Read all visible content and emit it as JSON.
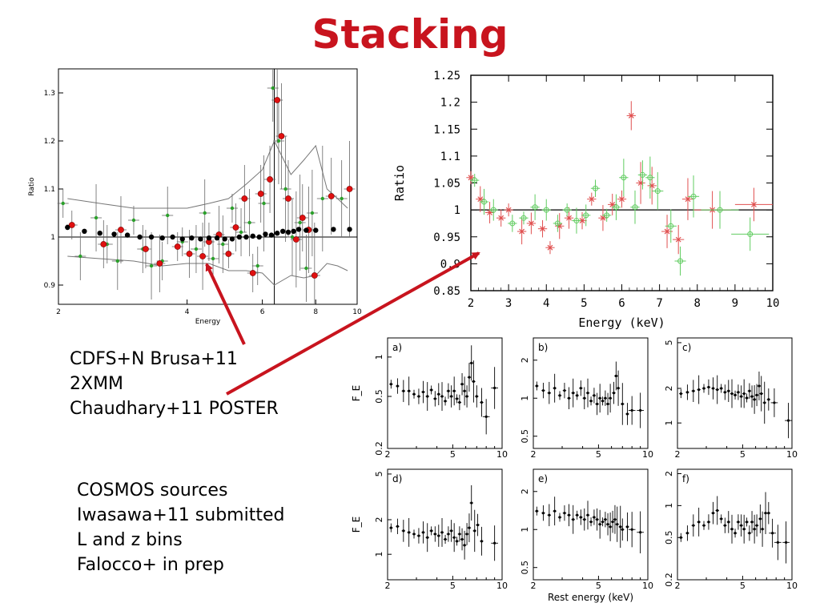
{
  "slide": {
    "title": "Stacking",
    "title_color": "#c8141e",
    "arrow_color": "#c8141e",
    "notes_top": [
      "CDFS+N Brusa+11",
      "2XMM",
      "Chaudhary+11 POSTER"
    ],
    "notes_bottom": [
      "COSMOS sources",
      "Iwasawa+11 submitted",
      "L and z bins",
      "Falocco+ in prep"
    ]
  },
  "chart_data": [
    {
      "id": "left",
      "type": "scatter",
      "title": "",
      "xlabel": "Energy",
      "ylabel": "Ratio",
      "xscale": "log",
      "xlim": [
        2,
        10
      ],
      "ylim": [
        0.86,
        1.35
      ],
      "xticks": [
        2,
        4,
        6,
        8,
        10
      ],
      "yticks": [
        0.9,
        1,
        1.1,
        1.2,
        1.3
      ],
      "ytick_labels": [
        "0.9",
        "1",
        "1.1",
        "1.2",
        "1.3"
      ],
      "hlines": [
        1.0
      ],
      "vlines": [
        6.4
      ],
      "series": [
        {
          "marker": "circle",
          "color": "#000000",
          "x": [
            2.1,
            2.3,
            2.5,
            2.7,
            2.9,
            3.1,
            3.3,
            3.5,
            3.7,
            3.9,
            4.1,
            4.3,
            4.5,
            4.7,
            4.9,
            5.1,
            5.3,
            5.5,
            5.7,
            5.9,
            6.1,
            6.3,
            6.5,
            6.7,
            6.9,
            7.1,
            7.3,
            7.6,
            8.0,
            8.8,
            9.6
          ],
          "y": [
            1.02,
            1.012,
            1.008,
            1.006,
            1.004,
            1.0,
            1.0,
            0.998,
            1.0,
            0.996,
            0.998,
            0.996,
            0.998,
            0.998,
            0.996,
            0.996,
            1.0,
            1.0,
            1.002,
            1.0,
            1.006,
            1.004,
            1.008,
            1.012,
            1.01,
            1.012,
            1.016,
            1.014,
            1.014,
            1.016,
            1.016
          ]
        },
        {
          "marker": "circle",
          "color": "#e01010",
          "x": [
            2.15,
            2.55,
            2.8,
            3.2,
            3.45,
            3.8,
            4.05,
            4.35,
            4.5,
            4.75,
            5.0,
            5.2,
            5.45,
            5.7,
            5.95,
            6.25,
            6.5,
            6.65,
            6.9,
            7.2,
            7.45,
            7.7,
            7.95,
            8.7,
            9.6
          ],
          "y": [
            1.025,
            0.985,
            1.015,
            0.975,
            0.945,
            0.98,
            0.965,
            0.96,
            0.99,
            1.005,
            0.965,
            1.02,
            1.08,
            0.925,
            1.09,
            1.12,
            1.285,
            1.21,
            1.08,
            0.995,
            1.04,
            1.015,
            0.92,
            1.085,
            1.1
          ]
        },
        {
          "marker": "circle",
          "color": "#2aa02a",
          "x": [
            2.05,
            2.25,
            2.45,
            2.6,
            2.75,
            3.0,
            3.15,
            3.3,
            3.5,
            3.6,
            3.9,
            4.2,
            4.4,
            4.6,
            4.85,
            5.1,
            5.35,
            5.6,
            5.85,
            6.05,
            6.35,
            6.55,
            6.8,
            7.05,
            7.35,
            7.6,
            7.85,
            8.3,
            9.2
          ],
          "y": [
            1.07,
            0.96,
            1.04,
            0.985,
            0.95,
            1.035,
            0.975,
            0.94,
            0.95,
            1.045,
            0.99,
            0.975,
            1.05,
            0.955,
            0.985,
            1.06,
            1.01,
            1.03,
            0.94,
            1.07,
            1.31,
            1.2,
            1.1,
            1.0,
            1.03,
            0.935,
            1.05,
            1.08,
            1.08
          ]
        }
      ],
      "envelope": {
        "x": [
          2.1,
          2.5,
          3.0,
          3.5,
          4.0,
          4.5,
          5.0,
          5.5,
          6.0,
          6.4,
          7.0,
          7.5,
          8.0,
          8.5,
          9.0,
          9.5
        ],
        "upper": [
          1.08,
          1.07,
          1.06,
          1.06,
          1.06,
          1.07,
          1.08,
          1.11,
          1.14,
          1.2,
          1.13,
          1.16,
          1.19,
          1.1,
          1.08,
          1.06
        ],
        "lower": [
          0.96,
          0.955,
          0.95,
          0.94,
          0.945,
          0.945,
          0.93,
          0.93,
          0.925,
          0.9,
          0.92,
          0.915,
          0.92,
          0.945,
          0.94,
          0.93
        ]
      }
    },
    {
      "id": "right",
      "type": "scatter",
      "title": "",
      "xlabel": "Energy (keV)",
      "ylabel": "Ratio",
      "xlim": [
        2,
        10
      ],
      "ylim": [
        0.85,
        1.25
      ],
      "xticks": [
        2,
        3,
        4,
        5,
        6,
        7,
        8,
        9,
        10
      ],
      "yticks": [
        0.85,
        0.9,
        0.95,
        1,
        1.05,
        1.1,
        1.15,
        1.2,
        1.25
      ],
      "ytick_labels": [
        "0.85",
        "0.9",
        "0.95",
        "1",
        "1.05",
        "1.1",
        "1.15",
        "1.2",
        "1.25"
      ],
      "hlines": [
        1.0
      ],
      "series": [
        {
          "marker": "cross",
          "color": "#e05050",
          "x": [
            2.0,
            2.25,
            2.5,
            2.8,
            3.0,
            3.35,
            3.6,
            3.9,
            4.1,
            4.35,
            4.6,
            4.95,
            5.2,
            5.5,
            5.75,
            6.0,
            6.25,
            6.5,
            6.8,
            7.2,
            7.5,
            7.75,
            8.4,
            9.5
          ],
          "y": [
            1.06,
            1.02,
            0.995,
            0.985,
            1.0,
            0.96,
            0.975,
            0.965,
            0.93,
            0.97,
            0.985,
            0.98,
            1.02,
            0.985,
            1.01,
            1.02,
            1.175,
            1.05,
            1.045,
            0.96,
            0.945,
            1.02,
            1.0,
            1.01
          ]
        },
        {
          "marker": "circle",
          "color": "#60cc60",
          "x": [
            2.1,
            2.35,
            2.6,
            3.1,
            3.4,
            3.7,
            4.0,
            4.3,
            4.55,
            4.8,
            5.05,
            5.3,
            5.6,
            5.85,
            6.05,
            6.35,
            6.55,
            6.75,
            6.95,
            7.3,
            7.55,
            7.9,
            8.6,
            9.4
          ],
          "y": [
            1.055,
            1.015,
            1.0,
            0.975,
            0.985,
            1.005,
            1.0,
            0.975,
            1.0,
            0.98,
            0.99,
            1.04,
            0.99,
            1.005,
            1.06,
            1.005,
            1.065,
            1.06,
            1.035,
            0.97,
            0.905,
            1.025,
            1.0,
            0.955
          ]
        }
      ]
    },
    {
      "id": "a",
      "panel_label": "a)",
      "type": "scatter",
      "xscale": "log",
      "yscale": "log",
      "ylabel": "F_E",
      "xlim": [
        2,
        10
      ],
      "ylim": [
        0.2,
        1.4
      ],
      "xticks": [
        2,
        5,
        10
      ],
      "yticks": [
        0.2,
        0.5,
        1
      ],
      "x": [
        2.1,
        2.3,
        2.5,
        2.7,
        2.9,
        3.1,
        3.3,
        3.5,
        3.7,
        3.9,
        4.1,
        4.3,
        4.5,
        4.7,
        4.9,
        5.1,
        5.3,
        5.5,
        5.7,
        5.9,
        6.1,
        6.3,
        6.5,
        6.7,
        7.0,
        7.5,
        8.0,
        9.0
      ],
      "y": [
        0.62,
        0.6,
        0.55,
        0.55,
        0.52,
        0.5,
        0.54,
        0.5,
        0.56,
        0.48,
        0.52,
        0.5,
        0.46,
        0.55,
        0.5,
        0.55,
        0.48,
        0.45,
        0.62,
        0.55,
        0.5,
        0.7,
        0.9,
        0.65,
        0.5,
        0.45,
        0.35,
        0.58
      ]
    },
    {
      "id": "b",
      "panel_label": "b)",
      "type": "scatter",
      "xscale": "log",
      "yscale": "log",
      "xlim": [
        2,
        10
      ],
      "ylim": [
        0.4,
        3.0
      ],
      "xticks": [
        2,
        5,
        10
      ],
      "yticks": [
        0.5,
        1,
        2
      ],
      "x": [
        2.1,
        2.3,
        2.5,
        2.7,
        2.9,
        3.1,
        3.3,
        3.5,
        3.7,
        3.9,
        4.1,
        4.3,
        4.5,
        4.7,
        4.9,
        5.1,
        5.3,
        5.5,
        5.7,
        5.9,
        6.2,
        6.4,
        6.6,
        7.0,
        7.5,
        8.0,
        9.0
      ],
      "y": [
        1.25,
        1.15,
        1.1,
        1.2,
        1.05,
        1.15,
        1.0,
        1.1,
        1.05,
        1.2,
        1.0,
        1.1,
        0.95,
        1.05,
        0.9,
        1.0,
        0.95,
        1.0,
        0.9,
        1.0,
        1.1,
        1.5,
        1.2,
        0.9,
        0.75,
        0.8,
        0.8
      ]
    },
    {
      "id": "c",
      "panel_label": "c)",
      "type": "scatter",
      "xscale": "log",
      "yscale": "log",
      "xlim": [
        2,
        10
      ],
      "ylim": [
        0.6,
        5.5
      ],
      "xticks": [
        2,
        5,
        10
      ],
      "yticks": [
        1,
        2,
        5
      ],
      "x": [
        2.1,
        2.3,
        2.5,
        2.7,
        2.9,
        3.1,
        3.3,
        3.5,
        3.7,
        3.9,
        4.1,
        4.3,
        4.5,
        4.7,
        4.9,
        5.1,
        5.3,
        5.5,
        5.7,
        5.9,
        6.1,
        6.3,
        6.5,
        6.8,
        7.2,
        7.8,
        9.5
      ],
      "y": [
        1.8,
        1.85,
        1.9,
        1.95,
        2.0,
        2.05,
        2.0,
        1.95,
        2.0,
        1.85,
        1.9,
        1.8,
        1.75,
        1.85,
        1.7,
        1.8,
        1.65,
        1.9,
        1.7,
        1.6,
        1.75,
        2.1,
        1.8,
        1.5,
        1.6,
        1.5,
        1.05
      ]
    },
    {
      "id": "d",
      "panel_label": "d)",
      "type": "scatter",
      "xscale": "log",
      "yscale": "log",
      "ylabel": "F_E",
      "xlim": [
        2,
        10
      ],
      "ylim": [
        0.6,
        5.5
      ],
      "xticks": [
        2,
        5,
        10
      ],
      "yticks": [
        1,
        2,
        5
      ],
      "x": [
        2.1,
        2.3,
        2.5,
        2.7,
        2.9,
        3.1,
        3.3,
        3.5,
        3.7,
        3.9,
        4.1,
        4.3,
        4.5,
        4.7,
        4.9,
        5.1,
        5.3,
        5.5,
        5.7,
        5.9,
        6.1,
        6.3,
        6.5,
        6.8,
        7.1,
        7.5,
        9.0
      ],
      "y": [
        1.7,
        1.75,
        1.6,
        1.55,
        1.5,
        1.45,
        1.55,
        1.4,
        1.6,
        1.5,
        1.45,
        1.55,
        1.35,
        1.5,
        1.6,
        1.4,
        1.3,
        1.5,
        1.35,
        1.2,
        1.5,
        1.7,
        2.8,
        1.6,
        1.8,
        1.3,
        1.25
      ]
    },
    {
      "id": "e",
      "panel_label": "e)",
      "type": "scatter",
      "xscale": "log",
      "yscale": "log",
      "xlabel": "Rest energy (keV)",
      "xlim": [
        2,
        10
      ],
      "ylim": [
        0.4,
        3.0
      ],
      "xticks": [
        2,
        5,
        10
      ],
      "yticks": [
        0.5,
        1,
        2
      ],
      "x": [
        2.1,
        2.3,
        2.5,
        2.7,
        2.9,
        3.1,
        3.3,
        3.5,
        3.7,
        3.9,
        4.1,
        4.3,
        4.5,
        4.7,
        4.9,
        5.1,
        5.3,
        5.5,
        5.7,
        5.9,
        6.1,
        6.3,
        6.5,
        6.8,
        7.0,
        7.5,
        8.0,
        9.0
      ],
      "y": [
        1.4,
        1.35,
        1.3,
        1.4,
        1.25,
        1.35,
        1.3,
        1.2,
        1.3,
        1.25,
        1.2,
        1.3,
        1.15,
        1.25,
        1.2,
        1.1,
        1.15,
        1.2,
        1.1,
        1.05,
        1.15,
        1.2,
        1.1,
        1.05,
        1.0,
        1.05,
        1.0,
        0.95
      ]
    },
    {
      "id": "f",
      "panel_label": "f)",
      "type": "scatter",
      "xscale": "log",
      "yscale": "log",
      "xlim": [
        2,
        10
      ],
      "ylim": [
        0.2,
        2.2
      ],
      "xticks": [
        2,
        5,
        10
      ],
      "yticks": [
        0.2,
        0.5,
        1,
        2
      ],
      "x": [
        2.1,
        2.3,
        2.5,
        2.7,
        2.9,
        3.1,
        3.3,
        3.5,
        3.7,
        3.9,
        4.1,
        4.3,
        4.5,
        4.7,
        4.9,
        5.1,
        5.3,
        5.5,
        5.7,
        5.9,
        6.1,
        6.4,
        6.6,
        6.9,
        7.2,
        7.6,
        8.2,
        9.2
      ],
      "y": [
        0.5,
        0.55,
        0.65,
        0.7,
        0.65,
        0.7,
        0.85,
        0.9,
        0.75,
        0.65,
        0.7,
        0.6,
        0.55,
        0.7,
        0.65,
        0.6,
        0.7,
        0.55,
        0.7,
        0.6,
        0.65,
        0.75,
        0.6,
        0.85,
        0.85,
        0.55,
        0.45,
        0.45
      ]
    }
  ]
}
